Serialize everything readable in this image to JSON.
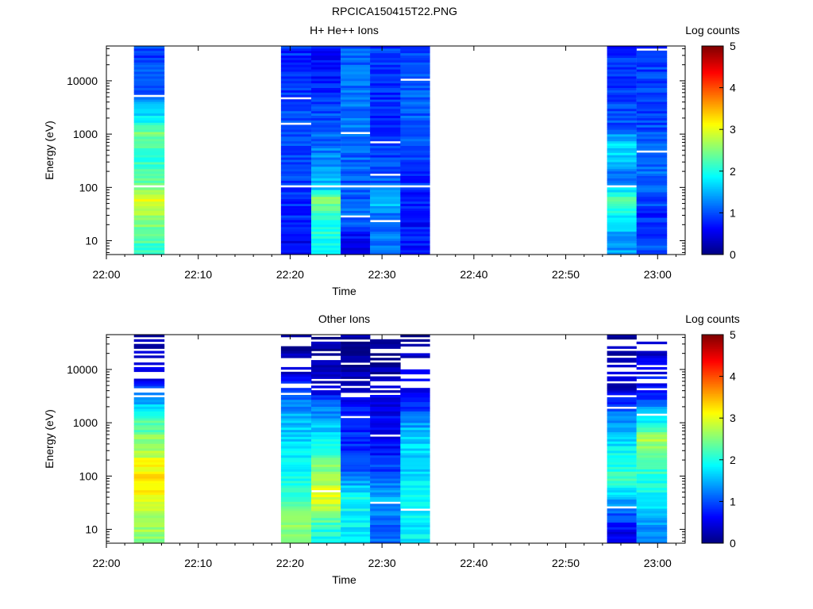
{
  "page": {
    "title": "RPCICA150415T22.PNG"
  },
  "chart_data": [
    {
      "type": "heatmap",
      "title": "H+ He++ Ions",
      "xlabel": "Time",
      "ylabel": "Energy (eV)",
      "x_ticks": [
        "22:00",
        "22:10",
        "22:20",
        "22:30",
        "22:40",
        "22:50",
        "23:00"
      ],
      "y_ticks": [
        "10",
        "100",
        "1000",
        "10000"
      ],
      "y_scale": "log",
      "ylim": [
        5.5,
        45000
      ],
      "xlim_minutes": [
        0,
        63
      ],
      "colorbar": {
        "label": "Log counts",
        "ticks": [
          "0",
          "1",
          "2",
          "3",
          "4",
          "5"
        ],
        "range": [
          0,
          5
        ],
        "colormap": "jet"
      },
      "time_bins_minutes": [
        [
          3,
          6.3
        ],
        [
          19,
          22.3
        ],
        [
          22.3,
          25.5
        ],
        [
          25.5,
          28.7
        ],
        [
          28.7,
          32
        ],
        [
          32,
          35.2
        ],
        [
          54.5,
          57.7
        ],
        [
          57.7,
          61
        ]
      ],
      "energy_profiles": [
        [
          [
            10,
            2.2
          ],
          [
            30,
            2.7
          ],
          [
            60,
            3.0
          ],
          [
            120,
            2.4
          ],
          [
            400,
            2.0
          ],
          [
            1000,
            2.5
          ],
          [
            2500,
            1.6
          ],
          [
            6000,
            1.1
          ],
          [
            45000,
            0.9
          ]
        ],
        [
          [
            10,
            0.6
          ],
          [
            30,
            0.8
          ],
          [
            100,
            0.9
          ],
          [
            1000,
            1.0
          ],
          [
            45000,
            0.8
          ]
        ],
        [
          [
            10,
            2.0
          ],
          [
            30,
            2.0
          ],
          [
            60,
            2.6
          ],
          [
            100,
            1.6
          ],
          [
            1000,
            1.1
          ],
          [
            45000,
            0.6
          ]
        ],
        [
          [
            10,
            0.6
          ],
          [
            30,
            1.2
          ],
          [
            100,
            1.0
          ],
          [
            1000,
            1.2
          ],
          [
            45000,
            1.1
          ]
        ],
        [
          [
            10,
            1.2
          ],
          [
            30,
            1.2
          ],
          [
            60,
            1.7
          ],
          [
            100,
            1.1
          ],
          [
            1000,
            0.8
          ],
          [
            45000,
            0.9
          ]
        ],
        [
          [
            10,
            0.7
          ],
          [
            30,
            0.7
          ],
          [
            100,
            0.8
          ],
          [
            1000,
            1.1
          ],
          [
            45000,
            1.0
          ]
        ],
        [
          [
            10,
            1.4
          ],
          [
            30,
            1.8
          ],
          [
            60,
            2.3
          ],
          [
            150,
            1.2
          ],
          [
            600,
            1.8
          ],
          [
            1500,
            1.0
          ],
          [
            45000,
            0.8
          ]
        ],
        [
          [
            10,
            1.0
          ],
          [
            30,
            0.8
          ],
          [
            100,
            1.2
          ],
          [
            1000,
            1.0
          ],
          [
            45000,
            0.9
          ]
        ]
      ]
    },
    {
      "type": "heatmap",
      "title": "Other Ions",
      "xlabel": "Time",
      "ylabel": "Energy (eV)",
      "x_ticks": [
        "22:00",
        "22:10",
        "22:20",
        "22:30",
        "22:40",
        "22:50",
        "23:00"
      ],
      "y_ticks": [
        "10",
        "100",
        "1000",
        "10000"
      ],
      "y_scale": "log",
      "ylim": [
        5.5,
        45000
      ],
      "xlim_minutes": [
        0,
        63
      ],
      "colorbar": {
        "label": "Log counts",
        "ticks": [
          "0",
          "1",
          "2",
          "3",
          "4",
          "5"
        ],
        "range": [
          0,
          5
        ],
        "colormap": "jet"
      },
      "time_bins_minutes": [
        [
          3,
          6.3
        ],
        [
          19,
          22.3
        ],
        [
          22.3,
          25.5
        ],
        [
          25.5,
          28.7
        ],
        [
          28.7,
          32
        ],
        [
          32,
          35.2
        ],
        [
          54.5,
          57.7
        ],
        [
          57.7,
          61
        ]
      ],
      "energy_profiles": [
        [
          [
            10,
            2.6
          ],
          [
            40,
            3.0
          ],
          [
            80,
            3.3
          ],
          [
            150,
            3.1
          ],
          [
            400,
            2.6
          ],
          [
            1500,
            2.1
          ],
          [
            3000,
            1.2
          ],
          [
            8000,
            0.4
          ],
          [
            45000,
            0.2
          ]
        ],
        [
          [
            10,
            2.6
          ],
          [
            40,
            2.2
          ],
          [
            200,
            1.8
          ],
          [
            1000,
            1.6
          ],
          [
            3000,
            1.2
          ],
          [
            10000,
            0.3
          ],
          [
            45000,
            0.1
          ]
        ],
        [
          [
            10,
            2.0
          ],
          [
            40,
            3.0
          ],
          [
            150,
            2.5
          ],
          [
            500,
            1.8
          ],
          [
            2000,
            1.2
          ],
          [
            5000,
            0.3
          ],
          [
            45000,
            0.1
          ]
        ],
        [
          [
            10,
            1.8
          ],
          [
            40,
            1.9
          ],
          [
            150,
            1.0
          ],
          [
            600,
            0.8
          ],
          [
            2000,
            0.8
          ],
          [
            5000,
            0.2
          ],
          [
            45000,
            0.1
          ]
        ],
        [
          [
            10,
            1.1
          ],
          [
            40,
            1.5
          ],
          [
            100,
            1.0
          ],
          [
            500,
            0.6
          ],
          [
            2000,
            0.6
          ],
          [
            10000,
            0.2
          ],
          [
            45000,
            0.1
          ]
        ],
        [
          [
            10,
            1.8
          ],
          [
            40,
            1.8
          ],
          [
            150,
            1.7
          ],
          [
            700,
            1.6
          ],
          [
            2000,
            0.8
          ],
          [
            8000,
            0.5
          ],
          [
            45000,
            0.1
          ]
        ],
        [
          [
            10,
            0.6
          ],
          [
            30,
            1.4
          ],
          [
            100,
            2.2
          ],
          [
            500,
            1.7
          ],
          [
            1500,
            1.2
          ],
          [
            4000,
            0.4
          ],
          [
            45000,
            0.1
          ]
        ],
        [
          [
            10,
            1.3
          ],
          [
            40,
            1.8
          ],
          [
            200,
            2.3
          ],
          [
            500,
            2.7
          ],
          [
            1200,
            1.8
          ],
          [
            3000,
            0.8
          ],
          [
            45000,
            0.3
          ]
        ]
      ]
    }
  ]
}
